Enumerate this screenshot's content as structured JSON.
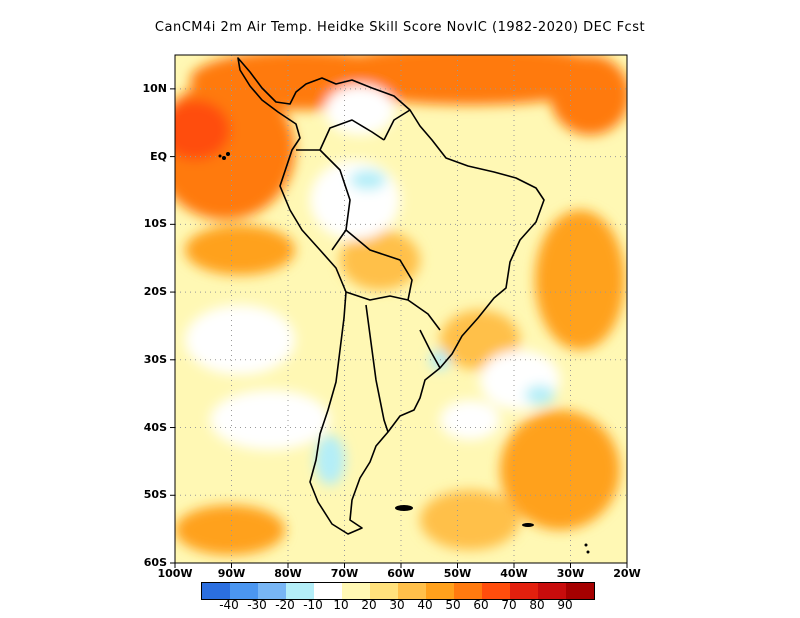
{
  "title": "CanCM4i  2m Air Temp. Heidke Skill Score NovIC (1982-2020) DEC Fcst",
  "map": {
    "lon_range": [
      -100,
      -20
    ],
    "lat_range": [
      -60,
      15
    ],
    "lat_ticks": [
      {
        "value": 10,
        "label": "10N"
      },
      {
        "value": 0,
        "label": "EQ"
      },
      {
        "value": -10,
        "label": "10S"
      },
      {
        "value": -20,
        "label": "20S"
      },
      {
        "value": -30,
        "label": "30S"
      },
      {
        "value": -40,
        "label": "40S"
      },
      {
        "value": -50,
        "label": "50S"
      },
      {
        "value": -60,
        "label": "60S"
      }
    ],
    "lon_ticks": [
      {
        "value": -100,
        "label": "100W"
      },
      {
        "value": -90,
        "label": "90W"
      },
      {
        "value": -80,
        "label": "80W"
      },
      {
        "value": -70,
        "label": "70W"
      },
      {
        "value": -60,
        "label": "60W"
      },
      {
        "value": -50,
        "label": "50W"
      },
      {
        "value": -40,
        "label": "40W"
      },
      {
        "value": -30,
        "label": "30W"
      },
      {
        "value": -20,
        "label": "20W"
      }
    ],
    "gridlines": "dotted"
  },
  "colorbar": {
    "colors": [
      "#2b6fe0",
      "#4b96f0",
      "#78b6f5",
      "#b4eef8",
      "#ffffff",
      "#fff8b4",
      "#ffe17c",
      "#ffc04a",
      "#ffa11c",
      "#ff7a0f",
      "#ff4d0c",
      "#e3200e",
      "#c80c0c",
      "#a50000"
    ],
    "labels": [
      "-40",
      "-30",
      "-20",
      "-10",
      "10",
      "20",
      "30",
      "40",
      "50",
      "60",
      "70",
      "80",
      "90"
    ]
  }
}
